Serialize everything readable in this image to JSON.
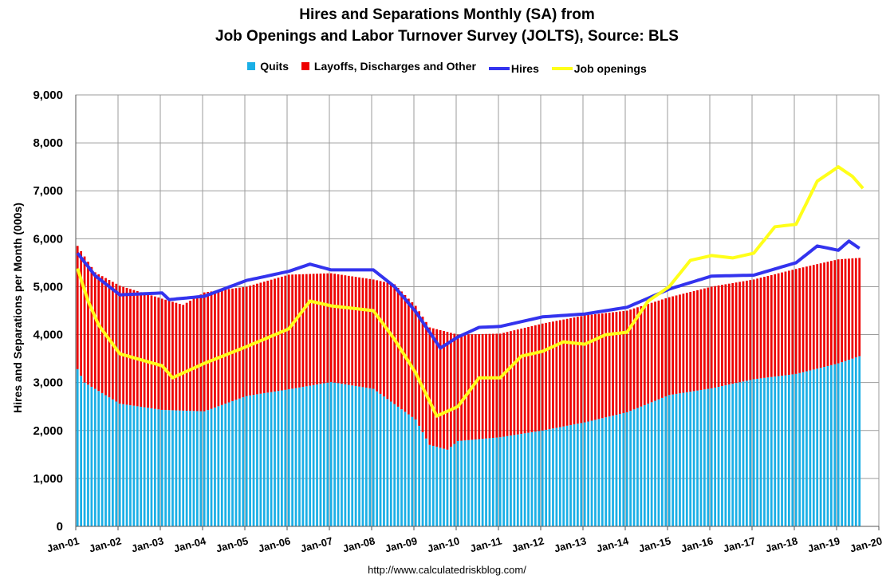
{
  "title_line1": "Hires and Separations Monthly (SA) from",
  "title_line2": "Job Openings and Labor Turnover Survey (JOLTS), Source: BLS",
  "source": "http://www.calculatedriskblog.com/",
  "colors": {
    "quits": "#1aafe6",
    "layoffs": "#ee0000",
    "hires": "#3333ee",
    "openings": "#ffff1a",
    "grid": "#9b9b9b"
  },
  "chart_data": {
    "type": "bar",
    "title": "Hires and Separations Monthly (SA) from Job Openings and Labor Turnover Survey (JOLTS), Source: BLS",
    "ylabel": "Hires and Separations per Month (000s)",
    "xlabel": "",
    "ylim": [
      0,
      9000
    ],
    "yticks": [
      0,
      1000,
      2000,
      3000,
      4000,
      5000,
      6000,
      7000,
      8000,
      9000
    ],
    "ytick_labels": [
      "0",
      "1,000",
      "2,000",
      "3,000",
      "4,000",
      "5,000",
      "6,000",
      "7,000",
      "8,000",
      "9,000"
    ],
    "x_tick_labels": [
      "Jan-01",
      "Jan-02",
      "Jan-03",
      "Jan-04",
      "Jan-05",
      "Jan-06",
      "Jan-07",
      "Jan-08",
      "Jan-09",
      "Jan-10",
      "Jan-11",
      "Jan-12",
      "Jan-13",
      "Jan-14",
      "Jan-15",
      "Jan-16",
      "Jan-17",
      "Jan-18",
      "Jan-19",
      "Jan-20"
    ],
    "x_range": [
      "Jan-01",
      "Jan-20"
    ],
    "grid": true,
    "legend_position": "top",
    "series": [
      {
        "name": "Quits",
        "kind": "stacked-bar",
        "anchors": [
          [
            "Jan-01",
            3280
          ],
          [
            "Mar-01",
            3000
          ],
          [
            "Jan-02",
            2560
          ],
          [
            "Jan-03",
            2430
          ],
          [
            "Jan-04",
            2400
          ],
          [
            "Jan-05",
            2720
          ],
          [
            "Jan-06",
            2860
          ],
          [
            "Jan-07",
            3010
          ],
          [
            "Jan-08",
            2870
          ],
          [
            "Jan-09",
            2230
          ],
          [
            "May-09",
            1700
          ],
          [
            "Oct-09",
            1600
          ],
          [
            "Jan-10",
            1780
          ],
          [
            "Jan-11",
            1860
          ],
          [
            "Jan-12",
            2000
          ],
          [
            "Jan-13",
            2170
          ],
          [
            "Jan-14",
            2380
          ],
          [
            "Jan-15",
            2740
          ],
          [
            "Jan-16",
            2880
          ],
          [
            "Jan-17",
            3070
          ],
          [
            "Jan-18",
            3180
          ],
          [
            "Jan-19",
            3400
          ],
          [
            "Jul-19",
            3550
          ]
        ]
      },
      {
        "name": "Layoffs, Discharges and Other",
        "kind": "stacked-bar",
        "anchors": [
          [
            "Jan-01",
            5850
          ],
          [
            "Jun-01",
            5300
          ],
          [
            "Jan-02",
            5020
          ],
          [
            "Jan-03",
            4750
          ],
          [
            "Jul-03",
            4620
          ],
          [
            "Jan-04",
            4880
          ],
          [
            "Jan-05",
            5000
          ],
          [
            "Jan-06",
            5250
          ],
          [
            "Jan-07",
            5280
          ],
          [
            "Jan-08",
            5150
          ],
          [
            "Jul-08",
            5050
          ],
          [
            "Jan-09",
            4600
          ],
          [
            "May-09",
            4150
          ],
          [
            "Jan-10",
            4000
          ],
          [
            "Jan-11",
            4020
          ],
          [
            "Jan-12",
            4230
          ],
          [
            "Jan-13",
            4400
          ],
          [
            "Jan-14",
            4500
          ],
          [
            "Jan-15",
            4780
          ],
          [
            "Jan-16",
            5000
          ],
          [
            "Jan-17",
            5150
          ],
          [
            "Jan-18",
            5370
          ],
          [
            "Jan-19",
            5570
          ],
          [
            "Jul-19",
            5600
          ]
        ]
      },
      {
        "name": "Hires",
        "kind": "line",
        "anchors": [
          [
            "Jan-01",
            5700
          ],
          [
            "Jun-01",
            5230
          ],
          [
            "Jan-02",
            4830
          ],
          [
            "Jan-03",
            4870
          ],
          [
            "Mar-03",
            4730
          ],
          [
            "Jan-04",
            4800
          ],
          [
            "Jan-05",
            5130
          ],
          [
            "Jan-06",
            5320
          ],
          [
            "Jul-06",
            5470
          ],
          [
            "Jan-07",
            5350
          ],
          [
            "Jan-08",
            5350
          ],
          [
            "Jul-08",
            5000
          ],
          [
            "Jan-09",
            4480
          ],
          [
            "Aug-09",
            3720
          ],
          [
            "Jan-10",
            3950
          ],
          [
            "Jul-10",
            4150
          ],
          [
            "Jan-11",
            4170
          ],
          [
            "Jan-12",
            4370
          ],
          [
            "Jan-13",
            4430
          ],
          [
            "Jan-14",
            4570
          ],
          [
            "Jan-15",
            4950
          ],
          [
            "Jan-16",
            5220
          ],
          [
            "Jan-17",
            5240
          ],
          [
            "Jan-18",
            5500
          ],
          [
            "Jul-18",
            5850
          ],
          [
            "Jan-19",
            5760
          ],
          [
            "Apr-19",
            5950
          ],
          [
            "Jul-19",
            5800
          ]
        ]
      },
      {
        "name": "Job openings",
        "kind": "line",
        "anchors": [
          [
            "Jan-01",
            5380
          ],
          [
            "Apr-01",
            4700
          ],
          [
            "Jul-01",
            4200
          ],
          [
            "Jan-02",
            3600
          ],
          [
            "Jan-03",
            3350
          ],
          [
            "Apr-03",
            3100
          ],
          [
            "Jan-04",
            3400
          ],
          [
            "Jan-05",
            3750
          ],
          [
            "Jan-06",
            4120
          ],
          [
            "Jul-06",
            4700
          ],
          [
            "Jan-07",
            4600
          ],
          [
            "Jan-08",
            4500
          ],
          [
            "Jul-08",
            3900
          ],
          [
            "Jan-09",
            3200
          ],
          [
            "Jul-09",
            2300
          ],
          [
            "Jan-10",
            2500
          ],
          [
            "Jul-10",
            3100
          ],
          [
            "Jan-11",
            3100
          ],
          [
            "Jul-11",
            3550
          ],
          [
            "Jan-12",
            3650
          ],
          [
            "Jul-12",
            3850
          ],
          [
            "Jan-13",
            3800
          ],
          [
            "Jul-13",
            4000
          ],
          [
            "Jan-14",
            4050
          ],
          [
            "Jul-14",
            4700
          ],
          [
            "Jan-15",
            5000
          ],
          [
            "Jul-15",
            5550
          ],
          [
            "Jan-16",
            5650
          ],
          [
            "Jul-16",
            5600
          ],
          [
            "Jan-17",
            5700
          ],
          [
            "Jul-17",
            6250
          ],
          [
            "Jan-18",
            6300
          ],
          [
            "Jul-18",
            7200
          ],
          [
            "Jan-19",
            7500
          ],
          [
            "May-19",
            7300
          ],
          [
            "Aug-19",
            7050
          ]
        ]
      }
    ]
  }
}
